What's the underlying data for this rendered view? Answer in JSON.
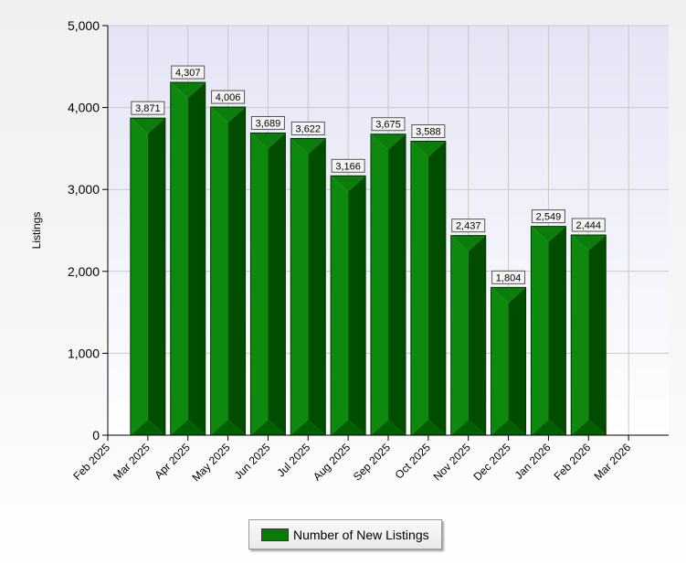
{
  "chart_data": {
    "type": "bar",
    "categories": [
      "Feb 2025",
      "Mar 2025",
      "Apr 2025",
      "May 2025",
      "Jun 2025",
      "Jul 2025",
      "Aug 2025",
      "Sep 2025",
      "Oct 2025",
      "Nov 2025",
      "Dec 2025",
      "Jan 2026",
      "Feb 2026",
      "Mar 2026"
    ],
    "series": [
      {
        "name": "Number of New Listings",
        "values": [
          null,
          3871,
          4307,
          4006,
          3689,
          3622,
          3166,
          3675,
          3588,
          2437,
          1804,
          2549,
          2444,
          null
        ],
        "labels": [
          "",
          "3,871",
          "4,307",
          "4,006",
          "3,689",
          "3,622",
          "3,166",
          "3,675",
          "3,588",
          "2,437",
          "1,804",
          "2,549",
          "2,444",
          ""
        ],
        "color": "#0a7a0a"
      }
    ],
    "ylabel": "Listings",
    "xlabel": "",
    "ylim": [
      0,
      5000
    ],
    "yticks": [
      0,
      1000,
      2000,
      3000,
      4000,
      5000
    ],
    "ytick_labels": [
      "0",
      "1,000",
      "2,000",
      "3,000",
      "4,000",
      "5,000"
    ],
    "grid": true,
    "legend": "bottom-center"
  },
  "legend": {
    "label": "Number of New Listings"
  },
  "colors": {
    "plot_bg_top": "#e4e4f6",
    "plot_bg_bottom": "#ffffff",
    "bar_face": "#0a7a0a",
    "bar_side": "#004d00",
    "grid": "#c8c8c8"
  }
}
